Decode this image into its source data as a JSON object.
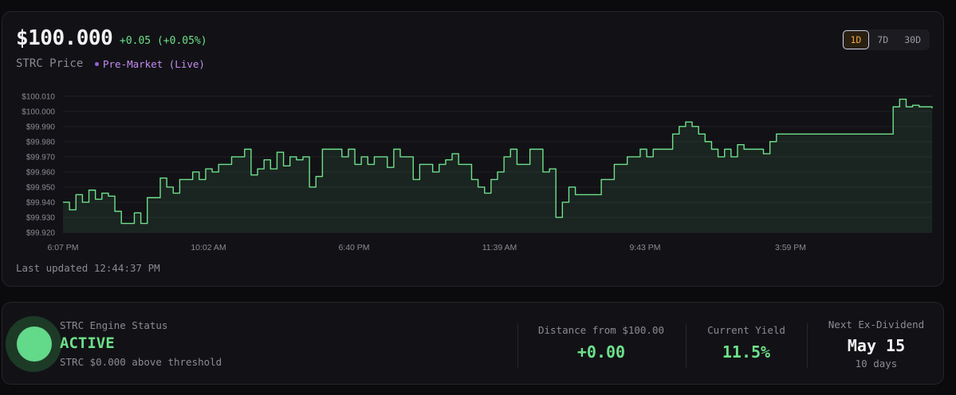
{
  "header": {
    "price": "$100.000",
    "change": "+0.05 (+0.05%)",
    "ticker_label": "STRC Price",
    "session_label": "Pre-Market (Live)"
  },
  "range_selector": {
    "options": [
      "1D",
      "7D",
      "30D"
    ],
    "active": "1D"
  },
  "last_updated": "Last updated 12:44:37 PM",
  "colors": {
    "line": "#6ee08a",
    "accent_orange": "#f0a440",
    "session_purple": "#c48cf0"
  },
  "chart_data": {
    "type": "area",
    "title": "",
    "xlabel": "",
    "ylabel": "",
    "ylim": [
      99.92,
      100.012
    ],
    "yticks": [
      "$100.010",
      "$100.000",
      "$99.990",
      "$99.980",
      "$99.970",
      "$99.960",
      "$99.950",
      "$99.940",
      "$99.930",
      "$99.920"
    ],
    "ytick_values": [
      100.01,
      100.0,
      99.99,
      99.98,
      99.97,
      99.96,
      99.95,
      99.94,
      99.93,
      99.92
    ],
    "xticks": [
      "6:07 PM",
      "10:02 AM",
      "6:40 PM",
      "11:39 AM",
      "9:43 PM",
      "3:59 PM"
    ],
    "grid": true,
    "series": [
      {
        "values": [
          99.94,
          99.935,
          99.945,
          99.94,
          99.948,
          99.942,
          99.946,
          99.944,
          99.934,
          99.926,
          99.926,
          99.933,
          99.926,
          99.943,
          99.943,
          99.956,
          99.95,
          99.946,
          99.955,
          99.955,
          99.96,
          99.955,
          99.962,
          99.96,
          99.965,
          99.965,
          99.97,
          99.97,
          99.975,
          99.958,
          99.962,
          99.968,
          99.962,
          99.973,
          99.964,
          99.97,
          99.968,
          99.97,
          99.95,
          99.957,
          99.975,
          99.975,
          99.975,
          99.97,
          99.975,
          99.965,
          99.97,
          99.965,
          99.97,
          99.97,
          99.963,
          99.975,
          99.97,
          99.97,
          99.955,
          99.965,
          99.965,
          99.96,
          99.965,
          99.968,
          99.972,
          99.965,
          99.965,
          99.955,
          99.95,
          99.946,
          99.955,
          99.96,
          99.97,
          99.975,
          99.965,
          99.965,
          99.975,
          99.975,
          99.96,
          99.962,
          99.93,
          99.94,
          99.95,
          99.945,
          99.945,
          99.945,
          99.945,
          99.955,
          99.955,
          99.965,
          99.965,
          99.97,
          99.97,
          99.975,
          99.97,
          99.975,
          99.975,
          99.975,
          99.985,
          99.99,
          99.993,
          99.99,
          99.985,
          99.98,
          99.975,
          99.97,
          99.975,
          99.97,
          99.978,
          99.975,
          99.975,
          99.975,
          99.972,
          99.98,
          99.985,
          99.985,
          99.985,
          99.985,
          99.985,
          99.985,
          99.985,
          99.985,
          99.985,
          99.985,
          99.985,
          99.985,
          99.985,
          99.985,
          99.985,
          99.985,
          99.985,
          99.985,
          100.003,
          100.008,
          100.003,
          100.004,
          100.003,
          100.003,
          100.002
        ]
      }
    ]
  },
  "engine": {
    "label": "STRC Engine Status",
    "state": "ACTIVE",
    "detail": "STRC $0.000 above threshold"
  },
  "stats": {
    "distance_label": "Distance from $100.00",
    "distance_value": "+0.00",
    "yield_label": "Current Yield",
    "yield_value": "11.5%",
    "exdiv_label": "Next Ex-Dividend",
    "exdiv_value": "May 15",
    "exdiv_sub": "10 days"
  }
}
